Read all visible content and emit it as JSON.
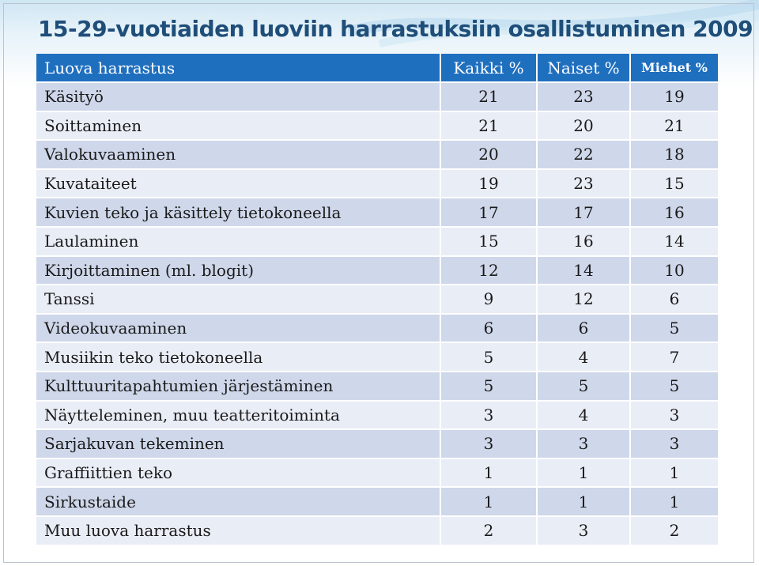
{
  "slide": {
    "title": "15-29-vuotiaiden luoviin harrastuksiin osallistuminen 2009"
  },
  "table": {
    "headers": [
      "Luova harrastus",
      "Kaikki %",
      "Naiset %",
      "Miehet %"
    ],
    "rows": [
      {
        "name": "Käsityö",
        "kaikki": "21",
        "naiset": "23",
        "miehet": "19"
      },
      {
        "name": "Soittaminen",
        "kaikki": "21",
        "naiset": "20",
        "miehet": "21"
      },
      {
        "name": "Valokuvaaminen",
        "kaikki": "20",
        "naiset": "22",
        "miehet": "18"
      },
      {
        "name": "Kuvataiteet",
        "kaikki": "19",
        "naiset": "23",
        "miehet": "15"
      },
      {
        "name": "Kuvien teko ja käsittely tietokoneella",
        "kaikki": "17",
        "naiset": "17",
        "miehet": "16"
      },
      {
        "name": "Laulaminen",
        "kaikki": "15",
        "naiset": "16",
        "miehet": "14"
      },
      {
        "name": "Kirjoittaminen (ml. blogit)",
        "kaikki": "12",
        "naiset": "14",
        "miehet": "10"
      },
      {
        "name": "Tanssi",
        "kaikki": "9",
        "naiset": "12",
        "miehet": "6"
      },
      {
        "name": "Videokuvaaminen",
        "kaikki": "6",
        "naiset": "6",
        "miehet": "5"
      },
      {
        "name": "Musiikin teko tietokoneella",
        "kaikki": "5",
        "naiset": "4",
        "miehet": "7"
      },
      {
        "name": "Kulttuuritapahtumien järjestäminen",
        "kaikki": "5",
        "naiset": "5",
        "miehet": "5"
      },
      {
        "name": "Näytteleminen, muu teatteritoiminta",
        "kaikki": "3",
        "naiset": "4",
        "miehet": "3"
      },
      {
        "name": "Sarjakuvan tekeminen",
        "kaikki": "3",
        "naiset": "3",
        "miehet": "3"
      },
      {
        "name": "Graffiittien teko",
        "kaikki": "1",
        "naiset": "1",
        "miehet": "1"
      },
      {
        "name": "Sirkustaide",
        "kaikki": "1",
        "naiset": "1",
        "miehet": "1"
      },
      {
        "name": "Muu luova harrastus",
        "kaikki": "2",
        "naiset": "3",
        "miehet": "2"
      }
    ]
  },
  "colors": {
    "header_bg": "#1f6fbf",
    "row_odd": "#cfd7ea",
    "row_even": "#e9edf6",
    "title": "#1f4e79"
  }
}
